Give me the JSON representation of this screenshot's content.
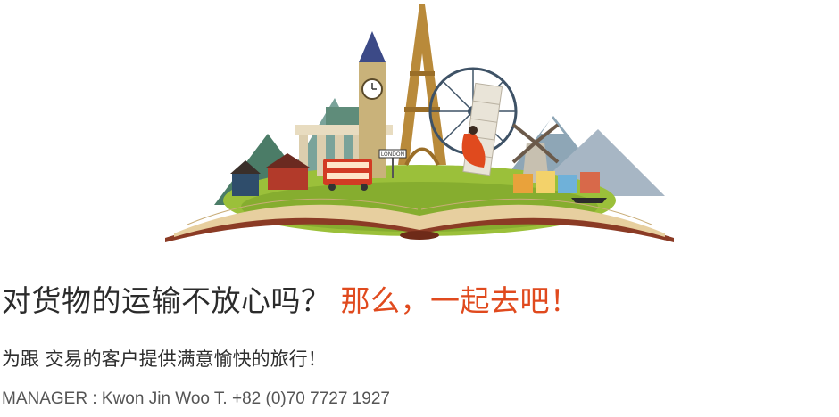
{
  "hero": {
    "image_name": "open-book-travel-landmarks-illustration",
    "bus_sign": "LONDON"
  },
  "headline": {
    "part1": "对货物的运输不放心吗？",
    "part2": "那么，一起去吧！"
  },
  "subline": "为跟 交易的客户提供满意愉快的旅行！",
  "manager": "MANAGER : Kwon Jin Woo T. +82 (0)70 7727 1927",
  "colors": {
    "accent": "#e04a1e",
    "text": "#2b2b2b",
    "muted": "#555555"
  }
}
